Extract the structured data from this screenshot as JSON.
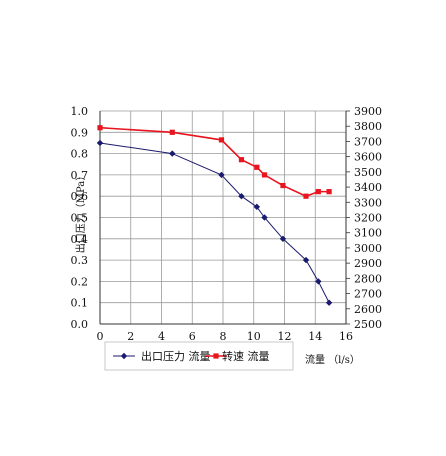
{
  "chart_data": {
    "type": "line",
    "title": "",
    "xlabel": "流量 （l/s）",
    "ylabel_left": "出口压力（MPa）",
    "ylabel_right": "",
    "xlim": [
      0,
      16
    ],
    "ylim_left": [
      0,
      1.0
    ],
    "ylim_right": [
      2500,
      3900
    ],
    "x_ticks": [
      "0",
      "2",
      "4",
      "6",
      "8",
      "10",
      "12",
      "14",
      "16"
    ],
    "y_left_ticks": [
      "0.0",
      "0.1",
      "0.2",
      "0.3",
      "0.4",
      "0.5",
      "0.6",
      "0.7",
      "0.8",
      "0.9",
      "1.0"
    ],
    "y_right_ticks": [
      "2500",
      "2600",
      "2700",
      "2800",
      "2900",
      "3000",
      "3100",
      "3200",
      "3300",
      "3400",
      "3500",
      "3600",
      "3700",
      "3800",
      "3900"
    ],
    "grid": true,
    "legend_position": "bottom",
    "series": [
      {
        "name": "出口压力 流量",
        "axis": "left",
        "color": "#1a1a6e",
        "marker": "diamond",
        "x": [
          0,
          4.7,
          7.9,
          9.2,
          10.2,
          10.7,
          11.9,
          13.4,
          14.2,
          14.9
        ],
        "y": [
          0.85,
          0.8,
          0.7,
          0.6,
          0.55,
          0.5,
          0.4,
          0.3,
          0.2,
          0.1
        ]
      },
      {
        "name": "转速 流量",
        "axis": "right",
        "color": "#e8141e",
        "marker": "square",
        "x": [
          0,
          4.7,
          7.9,
          9.2,
          10.2,
          10.7,
          11.9,
          13.4,
          14.2,
          14.9
        ],
        "y": [
          3790,
          3760,
          3710,
          3580,
          3530,
          3480,
          3410,
          3340,
          3370,
          3370
        ]
      }
    ]
  }
}
